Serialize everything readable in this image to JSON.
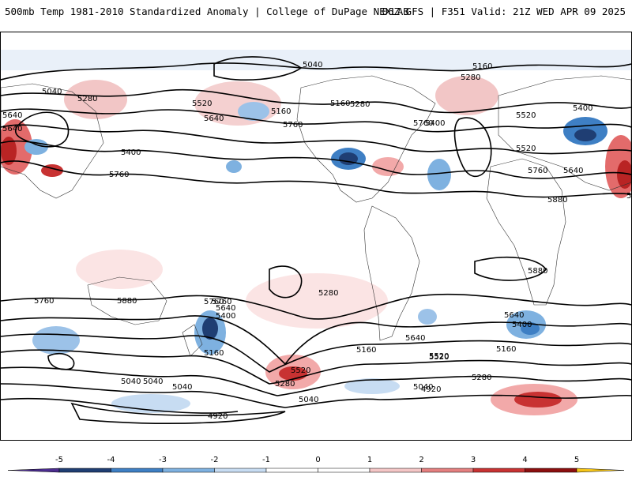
{
  "header": {
    "title_left": "500mb Temp 1981-2010 Standardized Anomaly | College of DuPage NEXLAB",
    "title_right": "06Z GFS | F351 Valid: 21Z WED APR 09 2025"
  },
  "map": {
    "contour_labels": [
      "5040",
      "5160",
      "5280",
      "5400",
      "5520",
      "5640",
      "5760",
      "5880",
      "4920"
    ],
    "labels": [
      {
        "text": "5040"
      },
      {
        "text": "5160"
      },
      {
        "text": "5280"
      },
      {
        "text": "5520"
      },
      {
        "text": "5640"
      },
      {
        "text": "5760"
      },
      {
        "text": "5400"
      },
      {
        "text": "5640"
      },
      {
        "text": "5760"
      },
      {
        "text": "5040"
      },
      {
        "text": "5160"
      },
      {
        "text": "5280"
      },
      {
        "text": "5400"
      },
      {
        "text": "5520"
      },
      {
        "text": "5640"
      },
      {
        "text": "5760"
      },
      {
        "text": "5280"
      },
      {
        "text": "5160"
      },
      {
        "text": "5400"
      },
      {
        "text": "5520"
      },
      {
        "text": "5640"
      },
      {
        "text": "5760"
      },
      {
        "text": "5880"
      },
      {
        "text": "5760"
      },
      {
        "text": "5880"
      },
      {
        "text": "5280"
      },
      {
        "text": "5520"
      },
      {
        "text": "5040"
      },
      {
        "text": "4920"
      },
      {
        "text": "5760"
      },
      {
        "text": "5640"
      },
      {
        "text": "5400"
      },
      {
        "text": "5160"
      },
      {
        "text": "4920"
      },
      {
        "text": "5040"
      },
      {
        "text": "5280"
      },
      {
        "text": "5520"
      },
      {
        "text": "5040"
      },
      {
        "text": "5760"
      },
      {
        "text": "5160"
      },
      {
        "text": "5640"
      },
      {
        "text": "5520"
      },
      {
        "text": "5280"
      },
      {
        "text": "5040"
      },
      {
        "text": "5760"
      },
      {
        "text": "5640"
      },
      {
        "text": "5400"
      },
      {
        "text": "5160"
      },
      {
        "text": "5040"
      },
      {
        "text": "5880"
      }
    ]
  },
  "colorbar": {
    "ticks": [
      "-5",
      "-4",
      "-3",
      "-2",
      "-1",
      "0",
      "1",
      "2",
      "3",
      "4",
      "5"
    ],
    "colors": [
      "#4b2c8f",
      "#1f3e73",
      "#3e7fc4",
      "#7eb1e0",
      "#c7dcf2",
      "#ffffff",
      "#ffffff",
      "#f4c6c6",
      "#e47f7f",
      "#c83232",
      "#8c0f0f",
      "#f5c518"
    ]
  }
}
